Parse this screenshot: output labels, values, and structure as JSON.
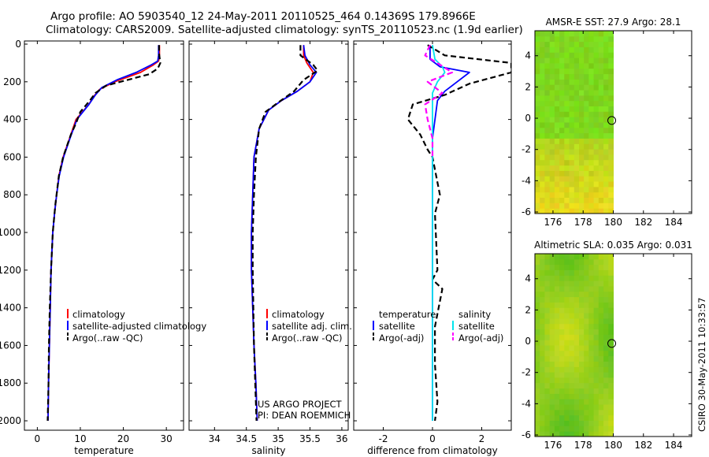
{
  "header": {
    "line1": "Argo profile: AO 5903540_12 24-May-2011 20110525_464 0.14369S 179.8966E",
    "line2": "Climatology: CARS2009. Satellite-adjusted climatology: synTS_20110523.nc (1.9d earlier)"
  },
  "footer_note": {
    "line1": "US ARGO PROJECT",
    "line2": "PI: DEAN ROEMMICH"
  },
  "side_stamp": "CSIRO 30-May-2011 10:33:57",
  "colors": {
    "climatology": "#ff0000",
    "satellite": "#0000ff",
    "argo": "#000000",
    "sal_satellite": "#00e5ee",
    "sal_argo": "#ff00ff"
  },
  "chart_data": [
    {
      "type": "line",
      "id": "temperature",
      "xlabel": "temperature",
      "ylabel": "",
      "xlim": [
        -3,
        34
      ],
      "ylim": [
        0,
        2050
      ],
      "xticks": [
        0,
        10,
        20,
        30
      ],
      "yticks": [
        0,
        200,
        400,
        600,
        800,
        1000,
        1200,
        1400,
        1600,
        1800,
        2000
      ],
      "y_reversed": true,
      "legend": [
        "climatology",
        "satellite-adjusted climatology",
        "Argo(..raw -QC)"
      ],
      "series": [
        {
          "name": "climatology",
          "color": "#ff0000",
          "dash": false,
          "x": [
            28.4,
            28.4,
            28.2,
            27.0,
            24.0,
            18.0,
            14.5,
            13.0,
            12.0,
            9.0,
            7.5,
            6.0,
            5.0,
            4.5,
            4.0,
            3.6,
            3.2,
            3.0,
            2.8,
            2.6,
            2.5
          ],
          "y": [
            5,
            60,
            90,
            110,
            150,
            200,
            240,
            280,
            320,
            400,
            500,
            600,
            700,
            800,
            900,
            1000,
            1200,
            1400,
            1600,
            1800,
            2000
          ]
        },
        {
          "name": "satellite-adjusted climatology",
          "color": "#0000ff",
          "dash": false,
          "x": [
            28.2,
            28.2,
            28.0,
            26.5,
            23.0,
            18.5,
            15.0,
            13.5,
            12.0,
            9.2,
            7.6,
            6.1,
            5.1,
            4.5,
            4.0,
            3.6,
            3.2,
            3.0,
            2.8,
            2.6,
            2.5
          ],
          "y": [
            5,
            60,
            90,
            110,
            150,
            190,
            230,
            270,
            320,
            400,
            500,
            600,
            700,
            800,
            900,
            1000,
            1200,
            1400,
            1600,
            1800,
            2000
          ]
        },
        {
          "name": "Argo(..raw -QC)",
          "color": "#000000",
          "dash": true,
          "x": [
            28.3,
            28.3,
            28.6,
            28.0,
            26.0,
            21.0,
            16.0,
            13.5,
            12.2,
            10.0,
            9.0,
            7.8,
            6.0,
            5.0,
            4.2,
            3.6,
            3.2,
            2.9,
            2.7,
            2.6,
            2.4
          ],
          "y": [
            5,
            50,
            100,
            130,
            160,
            190,
            220,
            260,
            300,
            360,
            420,
            480,
            600,
            700,
            850,
            1000,
            1200,
            1400,
            1600,
            1800,
            2000
          ]
        }
      ]
    },
    {
      "type": "line",
      "id": "salinity",
      "xlabel": "salinity",
      "xlim": [
        33.6,
        36.1
      ],
      "ylim": [
        0,
        2050
      ],
      "xticks": [
        34,
        34.5,
        35,
        35.5,
        36
      ],
      "yticks": [
        0,
        200,
        400,
        600,
        800,
        1000,
        1200,
        1400,
        1600,
        1800,
        2000
      ],
      "y_reversed": true,
      "legend": [
        "climatology",
        "satellite adj. clim.",
        "Argo(..raw -QC)"
      ],
      "series": [
        {
          "name": "climatology",
          "color": "#ff0000",
          "dash": false,
          "x": [
            35.4,
            35.4,
            35.45,
            35.55,
            35.5,
            35.3,
            35.05,
            34.85,
            34.7,
            34.62,
            34.6,
            34.58,
            34.58,
            34.6,
            34.62,
            34.65,
            34.67
          ],
          "y": [
            5,
            60,
            100,
            150,
            200,
            250,
            300,
            350,
            450,
            600,
            800,
            1000,
            1200,
            1400,
            1600,
            1800,
            2000
          ]
        },
        {
          "name": "satellite adj. clim.",
          "color": "#0000ff",
          "dash": false,
          "x": [
            35.4,
            35.42,
            35.5,
            35.6,
            35.5,
            35.3,
            35.05,
            34.85,
            34.7,
            34.62,
            34.6,
            34.58,
            34.58,
            34.6,
            34.62,
            34.65,
            34.67
          ],
          "y": [
            5,
            60,
            110,
            150,
            200,
            250,
            300,
            350,
            450,
            600,
            800,
            1000,
            1200,
            1400,
            1600,
            1800,
            2000
          ]
        },
        {
          "name": "Argo(..raw -QC)",
          "color": "#000000",
          "dash": true,
          "x": [
            35.35,
            35.35,
            35.55,
            35.62,
            35.4,
            35.25,
            35.0,
            34.8,
            34.7,
            34.65,
            34.62,
            34.6,
            34.6,
            34.61,
            34.62,
            34.64,
            34.66
          ],
          "y": [
            5,
            60,
            110,
            140,
            190,
            250,
            310,
            360,
            450,
            600,
            800,
            1000,
            1200,
            1400,
            1600,
            1800,
            2000
          ]
        }
      ]
    },
    {
      "type": "line",
      "id": "difference",
      "xlabel": "difference from climatology",
      "xlim": [
        -3.2,
        3.2
      ],
      "ylim": [
        0,
        2050
      ],
      "xticks": [
        -2,
        0,
        2
      ],
      "yticks": [
        0,
        200,
        400,
        600,
        800,
        1000,
        1200,
        1400,
        1600,
        1800,
        2000
      ],
      "y_reversed": true,
      "legend_left_title": "temperature",
      "legend_right_title": "salinity",
      "legend": [
        "satellite",
        "Argo(-adj)",
        "satellite",
        "Argo(-adj)"
      ],
      "series": [
        {
          "name": "temperature satellite",
          "color": "#0000ff",
          "dash": false,
          "x": [
            -0.1,
            -0.1,
            0.3,
            1.5,
            1.0,
            0.5,
            0.2,
            0.0,
            0.0,
            0.0,
            0.0,
            0.0,
            0.0
          ],
          "y": [
            5,
            80,
            120,
            150,
            200,
            250,
            300,
            500,
            800,
            1200,
            1500,
            1800,
            2000
          ]
        },
        {
          "name": "temperature Argo(-adj)",
          "color": "#000000",
          "dash": true,
          "x": [
            -0.2,
            0.5,
            3.2,
            3.2,
            1.5,
            0.5,
            -0.8,
            -1.0,
            -0.5,
            -0.2,
            0.0,
            0.3,
            0.1,
            0.2,
            0.0,
            0.4,
            0.1,
            0.1,
            0.2,
            0.1
          ],
          "y": [
            5,
            60,
            100,
            150,
            210,
            270,
            320,
            400,
            480,
            560,
            600,
            800,
            900,
            1200,
            1250,
            1300,
            1500,
            1700,
            1900,
            2000
          ]
        },
        {
          "name": "salinity satellite",
          "color": "#00e5ee",
          "dash": false,
          "x": [
            0.0,
            0.1,
            0.4,
            0.5,
            0.2,
            0.0,
            0.0,
            0.0,
            0.0,
            0.0,
            0.0,
            0.0
          ],
          "y": [
            5,
            80,
            120,
            150,
            200,
            260,
            400,
            800,
            1200,
            1500,
            1800,
            2000
          ]
        },
        {
          "name": "salinity Argo(-adj)",
          "color": "#ff00ff",
          "dash": true,
          "x": [
            -0.1,
            -0.3,
            0.8,
            -0.2,
            0.4,
            -0.3,
            -0.2,
            0.0,
            0.0
          ],
          "y": [
            5,
            60,
            150,
            200,
            260,
            320,
            400,
            500,
            600
          ]
        }
      ]
    },
    {
      "type": "heatmap",
      "id": "sst_map",
      "title": "AMSR-E SST: 27.9 Argo: 28.1",
      "xlim": [
        174.8,
        185.2
      ],
      "ylim": [
        -6.1,
        5.6
      ],
      "xticks": [
        176,
        178,
        180,
        182,
        184
      ],
      "yticks": [
        -6,
        -4,
        -2,
        0,
        2,
        4
      ],
      "data_extent_lon": [
        174.8,
        180.0
      ],
      "marker": {
        "lon": 179.8966,
        "lat": -0.14369
      }
    },
    {
      "type": "heatmap",
      "id": "sla_map",
      "title": "Altimetric SLA: 0.035 Argo: 0.031",
      "xlim": [
        174.8,
        185.2
      ],
      "ylim": [
        -6.1,
        5.6
      ],
      "xticks": [
        176,
        178,
        180,
        182,
        184
      ],
      "yticks": [
        -6,
        -4,
        -2,
        0,
        2,
        4
      ],
      "data_extent_lon": [
        174.8,
        180.0
      ],
      "marker": {
        "lon": 179.8966,
        "lat": -0.14369
      }
    }
  ]
}
